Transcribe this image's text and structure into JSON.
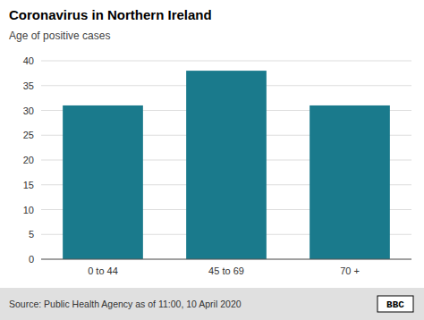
{
  "chart_data": {
    "type": "bar",
    "title": "Coronavirus in Northern Ireland",
    "subtitle": "Age of positive cases",
    "categories": [
      "0 to 44",
      "45 to 69",
      "70 +"
    ],
    "values": [
      31,
      38,
      31
    ],
    "color": "#1a7a8c",
    "ylim": [
      0,
      40
    ],
    "yticks": [
      0,
      5,
      10,
      15,
      20,
      25,
      30,
      35,
      40
    ],
    "grid": true,
    "annotations": [
      "Source: Public Health Agency as of 11:00, 10 April 2020",
      "BBC"
    ]
  }
}
